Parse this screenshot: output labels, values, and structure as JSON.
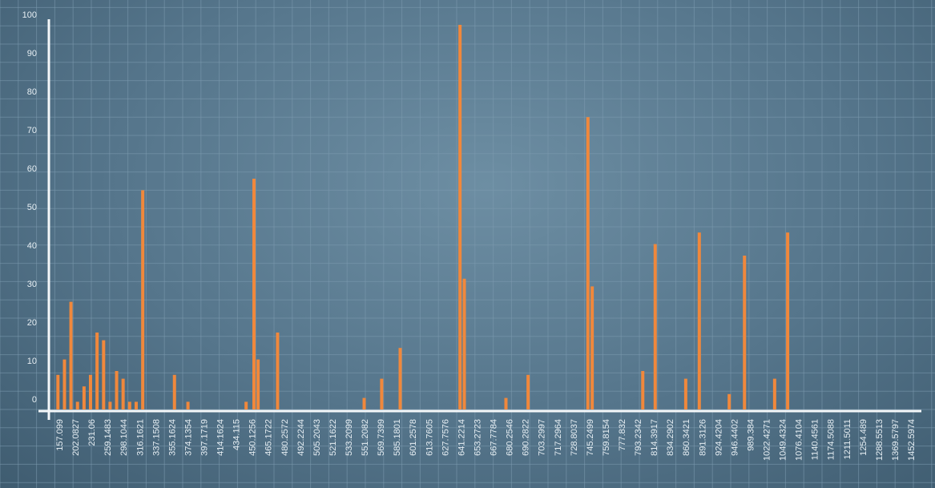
{
  "chart_data": {
    "type": "bar",
    "ylim": [
      0,
      100
    ],
    "y_ticks": [
      0,
      10,
      20,
      30,
      40,
      50,
      60,
      70,
      80,
      90,
      100
    ],
    "x_tick_labels": [
      "157.099",
      "202.0827",
      "231.06",
      "259.1483",
      "298.1044",
      "316.1621",
      "337.1508",
      "355.1624",
      "374.1354",
      "397.1719",
      "414.1624",
      "434.115",
      "450.1256",
      "465.1722",
      "480.2572",
      "492.2244",
      "505.2043",
      "521.1622",
      "533.2099",
      "551.2082",
      "569.7399",
      "585.1801",
      "601.2578",
      "613.7605",
      "627.7576",
      "641.2214",
      "653.2723",
      "667.7784",
      "680.2546",
      "690.2822",
      "703.2997",
      "717.2964",
      "728.8037",
      "745.2499",
      "759.8154",
      "777.832",
      "793.2342",
      "814.3917",
      "834.2902",
      "860.3421",
      "891.3126",
      "924.4204",
      "946.4402",
      "989.384",
      "1022.4271",
      "1049.4324",
      "1076.4104",
      "1140.4561",
      "1174.5088",
      "1211.5011",
      "1254.489",
      "1288.5513",
      "1369.5797",
      "1452.5974"
    ],
    "x_range": [
      145,
      1465
    ],
    "grid": true,
    "bars": [
      {
        "x": 158.7,
        "y": 9
      },
      {
        "x": 168.6,
        "y": 13
      },
      {
        "x": 178.4,
        "y": 28
      },
      {
        "x": 188.3,
        "y": 2
      },
      {
        "x": 198.2,
        "y": 6
      },
      {
        "x": 208.0,
        "y": 9
      },
      {
        "x": 217.9,
        "y": 20
      },
      {
        "x": 227.8,
        "y": 18
      },
      {
        "x": 237.6,
        "y": 2
      },
      {
        "x": 247.5,
        "y": 10
      },
      {
        "x": 257.3,
        "y": 8
      },
      {
        "x": 267.2,
        "y": 2
      },
      {
        "x": 277.1,
        "y": 2
      },
      {
        "x": 287.0,
        "y": 57
      },
      {
        "x": 335.0,
        "y": 9
      },
      {
        "x": 355.4,
        "y": 2
      },
      {
        "x": 443.4,
        "y": 2
      },
      {
        "x": 455.3,
        "y": 60
      },
      {
        "x": 461.5,
        "y": 13
      },
      {
        "x": 491.0,
        "y": 20
      },
      {
        "x": 622.0,
        "y": 3
      },
      {
        "x": 648.5,
        "y": 8
      },
      {
        "x": 676.5,
        "y": 16
      },
      {
        "x": 767.0,
        "y": 100
      },
      {
        "x": 773.5,
        "y": 34
      },
      {
        "x": 836.5,
        "y": 3
      },
      {
        "x": 870.0,
        "y": 9
      },
      {
        "x": 960.5,
        "y": 76
      },
      {
        "x": 967.0,
        "y": 32
      },
      {
        "x": 1043.5,
        "y": 10
      },
      {
        "x": 1062.3,
        "y": 43
      },
      {
        "x": 1108.5,
        "y": 8
      },
      {
        "x": 1129.0,
        "y": 46
      },
      {
        "x": 1174.3,
        "y": 4
      },
      {
        "x": 1197.4,
        "y": 40
      },
      {
        "x": 1243.0,
        "y": 8
      },
      {
        "x": 1262.7,
        "y": 46
      }
    ],
    "colors": {
      "bar": "#f0883c",
      "axis": "#f4f7f9",
      "grid": "#7d9bb0",
      "text": "#e6eef3"
    }
  }
}
